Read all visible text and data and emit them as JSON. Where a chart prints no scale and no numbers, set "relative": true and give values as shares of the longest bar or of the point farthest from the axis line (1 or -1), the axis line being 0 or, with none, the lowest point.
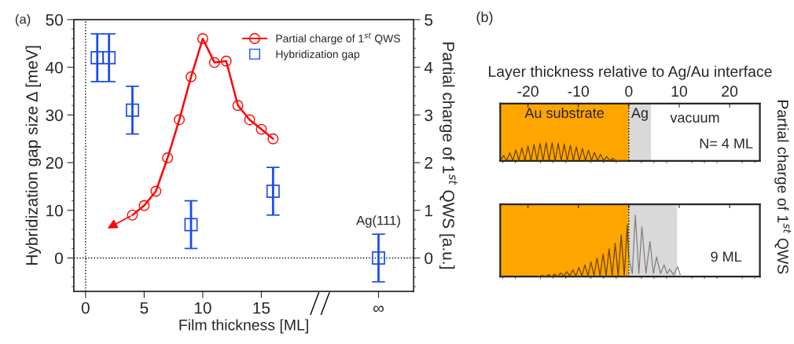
{
  "chart_data": [
    {
      "type": "line",
      "xlabel": "Film thickness [ML]",
      "ylabel": "Hybridization gap size Δ [meV]",
      "y2label": "Partial charge of 1$^{st}$ QWS [a.u.]",
      "xlim": [
        -1,
        28
      ],
      "xticks": [
        0,
        5,
        10,
        15,
        {
          "value": 25,
          "label": "∞"
        }
      ],
      "ylim": [
        -7,
        50
      ],
      "yticks": [
        0,
        10,
        20,
        30,
        40,
        50
      ],
      "y2lim": [
        -0.7,
        5
      ],
      "y2ticks": [
        0,
        1,
        2,
        3,
        4,
        5
      ],
      "legend": "top right",
      "grid": false,
      "ref_lines": [
        {
          "axis": "x",
          "value": 0,
          "line_style": "dotted",
          "color": "#000000"
        },
        {
          "axis": "y",
          "value": 0,
          "line_style": "dotted",
          "color": "#000000"
        }
      ],
      "annotations": [
        "(a)",
        {
          "text": "Ag(111)",
          "x": 25,
          "y": 5
        }
      ],
      "series": [
        {
          "name": "Partial charge of 1$^{st}$ QWS",
          "type": "line",
          "axis": "y2",
          "color": "#ff0000",
          "marker": "circle",
          "line_style": "solid",
          "x": [
            4,
            5,
            6,
            7,
            8,
            9,
            10,
            11,
            12,
            13,
            14,
            15,
            16
          ],
          "values": [
            0.9,
            1.1,
            1.4,
            2.1,
            2.9,
            3.8,
            4.6,
            4.1,
            4.13,
            3.2,
            2.9,
            2.7,
            2.5
          ]
        },
        {
          "name": "Hybridization gap",
          "type": "scatter",
          "color": "#1a4cf0",
          "marker": "square",
          "x": [
            1,
            2,
            4,
            9,
            16,
            25
          ],
          "values": [
            42,
            42,
            31,
            7,
            14,
            0
          ],
          "errors": [
            5,
            5,
            5,
            5,
            5,
            5
          ]
        }
      ]
    },
    {
      "type": "line",
      "relative": true,
      "xlabel": "Layer thickness relative to Ag/Au interface",
      "ylabel": "Partial charge of 1$^{st}$ QWS",
      "xlim": [
        -25.5,
        26
      ],
      "xticks": [
        -20,
        -10,
        0,
        10,
        20
      ],
      "tick_labels": "x",
      "bands": [
        {
          "axis": "x",
          "from": -25.5,
          "to": 0,
          "label": "Au substrate",
          "color": "#ffa500"
        },
        {
          "axis": "x",
          "from": 0,
          "to": 4.4,
          "label": "Ag",
          "color": "#d9d9d9"
        }
      ],
      "ref_lines": [
        {
          "axis": "x",
          "value": 0,
          "line_style": "dotted",
          "color": "#000000"
        }
      ],
      "annotations": [
        "(b)",
        "vacuum",
        "N= 4 ML"
      ],
      "series": [
        {
          "color": "#6b4400",
          "x": [
            -25.4,
            -24.8,
            -24.2,
            -23.6,
            -23.0,
            -22.4,
            -21.8,
            -21.2,
            -20.6,
            -20.0,
            -19.4,
            -18.8,
            -18.2,
            -17.6,
            -17.0,
            -16.4,
            -15.8,
            -15.2,
            -14.6,
            -14.0,
            -13.4,
            -12.8,
            -12.2,
            -11.6,
            -11.0,
            -10.4,
            -9.8,
            -9.2,
            -8.6,
            -8.0,
            -7.4,
            -6.8,
            -6.2,
            -5.6,
            -5.0,
            -4.4,
            -3.8,
            -3.2,
            -2.6,
            -0.2
          ],
          "values": [
            0.05,
            0.3,
            0.03,
            0.45,
            0.03,
            0.6,
            0.03,
            0.72,
            0.03,
            0.82,
            0.03,
            0.9,
            0.03,
            0.96,
            0.03,
            1.0,
            0.03,
            1.0,
            0.03,
            0.97,
            0.03,
            0.92,
            0.03,
            0.85,
            0.03,
            0.77,
            0.03,
            0.68,
            0.03,
            0.58,
            0.03,
            0.47,
            0.03,
            0.36,
            0.03,
            0.25,
            0.02,
            0.15,
            0.01,
            0.0
          ]
        }
      ]
    },
    {
      "type": "line",
      "relative": true,
      "xlim": [
        -25.5,
        26
      ],
      "xticks": [
        -20,
        -10,
        0,
        10,
        20
      ],
      "tick_labels": false,
      "bands": [
        {
          "axis": "x",
          "from": -25.5,
          "to": 0,
          "color": "#ffa500"
        },
        {
          "axis": "x",
          "from": 0,
          "to": 9.6,
          "color": "#d9d9d9"
        }
      ],
      "ref_lines": [
        {
          "axis": "x",
          "value": 0,
          "line_style": "dotted",
          "color": "#000000"
        }
      ],
      "annotations": [
        "9 ML"
      ],
      "series": [
        {
          "color": "#6b4400",
          "x": [
            -18.0,
            -17.1,
            -16.5,
            -15.9,
            -15.3,
            -14.7,
            -14.1,
            -13.5,
            -12.9,
            -12.3,
            -11.7,
            -11.1,
            -10.5,
            -9.9,
            -9.3,
            -8.7,
            -8.1,
            -7.5,
            -6.9,
            -6.3,
            -5.7,
            -5.1,
            -4.5,
            -3.9,
            -3.3,
            -2.7,
            -2.1,
            -1.5,
            -0.9,
            -0.3,
            0.0
          ],
          "values": [
            0.0,
            0.02,
            0.0,
            0.03,
            0.0,
            0.04,
            0.0,
            0.06,
            0.01,
            0.08,
            0.01,
            0.11,
            0.01,
            0.15,
            0.01,
            0.19,
            0.01,
            0.24,
            0.01,
            0.3,
            0.01,
            0.37,
            0.01,
            0.45,
            0.01,
            0.54,
            0.01,
            0.68,
            0.01,
            0.84,
            0.3
          ]
        },
        {
          "color": "#7f7f7f",
          "x": [
            0.0,
            0.7,
            1.3,
            2.0,
            2.6,
            3.4,
            4.2,
            4.9,
            5.5,
            6.3,
            7.0,
            7.6,
            8.1,
            8.9,
            9.7,
            10.3
          ],
          "values": [
            0.3,
            0.05,
            1.0,
            0.05,
            0.81,
            0.05,
            0.57,
            0.05,
            0.32,
            0.05,
            0.19,
            0.05,
            0.12,
            0.03,
            0.16,
            0.0
          ]
        }
      ]
    }
  ]
}
